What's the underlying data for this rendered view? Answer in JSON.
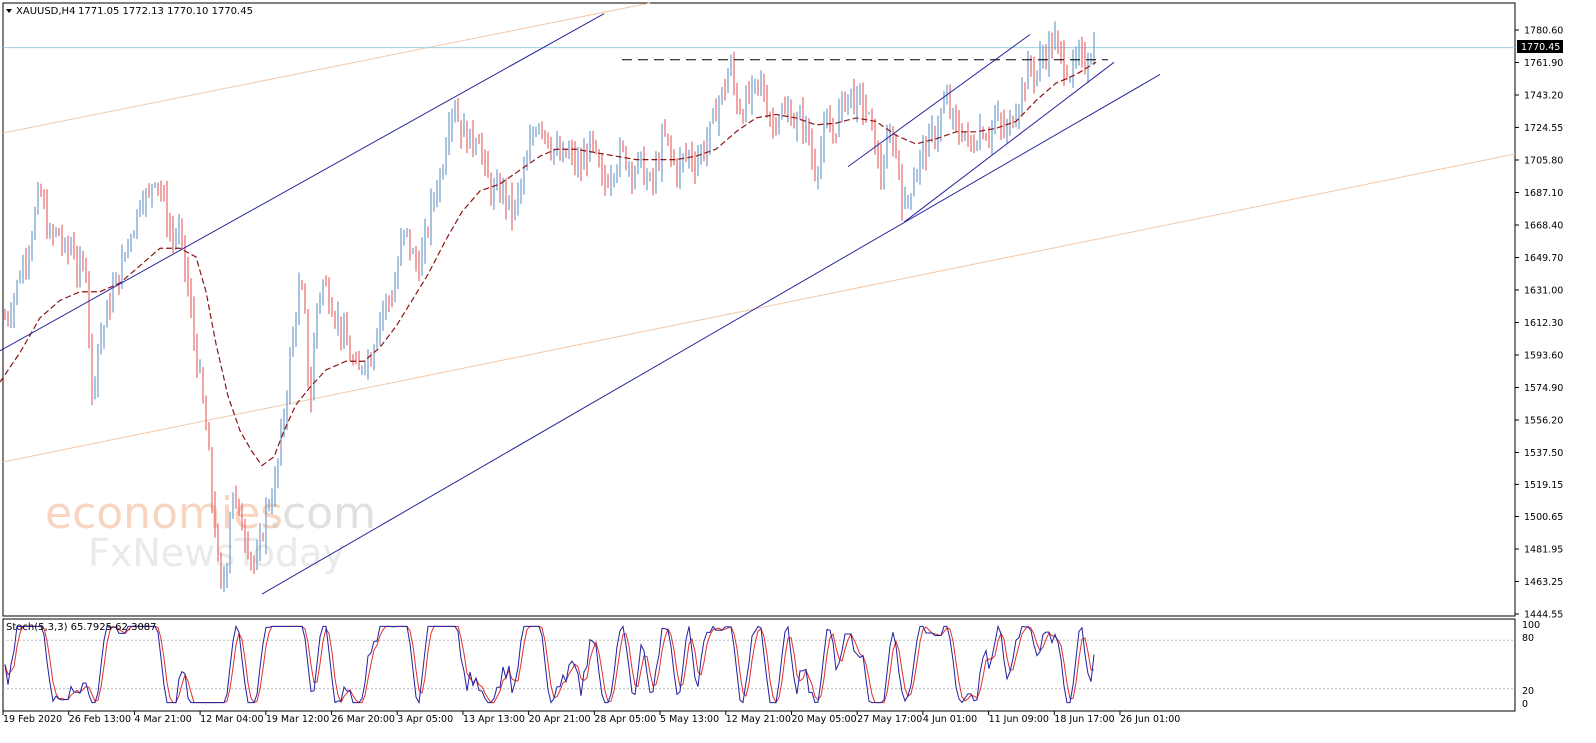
{
  "header": {
    "symbol": "XAUUSD,H4",
    "ohlc": "1771.05 1772.13 1770.10 1770.45"
  },
  "watermark": {
    "line1": "economies",
    "line1b": ".com",
    "line2": "FxNewsToday"
  },
  "price_label": "1770.45",
  "stoch": {
    "label": "Stoch(5,3,3) 65.7925 62.3087",
    "levels": [
      "100",
      "80",
      "20",
      "0"
    ]
  },
  "colors": {
    "bull": "#6f9ccc",
    "bear": "#e66b6b",
    "trendline": "#28289c",
    "ma": "#8c1616",
    "channel": "#f4c9a8",
    "stoch_main": "#2020a0",
    "stoch_signal": "#e03030",
    "current_price": "#9ecfe0"
  },
  "chart_data": {
    "type": "candlestick",
    "symbol": "XAUUSD",
    "timeframe": "H4",
    "ylim": [
      1444.55,
      1790
    ],
    "y_ticks": [
      "1780.60",
      "1761.90",
      "1743.20",
      "1724.55",
      "1705.80",
      "1687.10",
      "1668.40",
      "1649.70",
      "1631.00",
      "1612.30",
      "1593.60",
      "1574.90",
      "1556.20",
      "1537.50",
      "1519.15",
      "1500.65",
      "1481.95",
      "1463.25",
      "1444.55"
    ],
    "x_ticks": [
      "19 Feb 2020",
      "26 Feb 13:00",
      "4 Mar 21:00",
      "12 Mar 04:00",
      "19 Mar 12:00",
      "26 Mar 20:00",
      "3 Apr 05:00",
      "13 Apr 13:00",
      "20 Apr 21:00",
      "28 Apr 05:00",
      "5 May 13:00",
      "12 May 21:00",
      "20 May 05:00",
      "27 May 17:00",
      "4 Jun 01:00",
      "11 Jun 09:00",
      "18 Jun 17:00",
      "26 Jun 01:00"
    ],
    "price_path": [
      [
        0,
        1610
      ],
      [
        10,
        1620
      ],
      [
        20,
        1640
      ],
      [
        30,
        1660
      ],
      [
        40,
        1688
      ],
      [
        50,
        1660
      ],
      [
        58,
        1665
      ],
      [
        66,
        1650
      ],
      [
        72,
        1660
      ],
      [
        78,
        1640
      ],
      [
        86,
        1645
      ],
      [
        92,
        1570
      ],
      [
        98,
        1600
      ],
      [
        104,
        1610
      ],
      [
        112,
        1630
      ],
      [
        120,
        1640
      ],
      [
        128,
        1660
      ],
      [
        136,
        1672
      ],
      [
        142,
        1690
      ],
      [
        148,
        1680
      ],
      [
        154,
        1700
      ],
      [
        160,
        1690
      ],
      [
        166,
        1675
      ],
      [
        172,
        1660
      ],
      [
        178,
        1665
      ],
      [
        184,
        1650
      ],
      [
        190,
        1620
      ],
      [
        196,
        1595
      ],
      [
        202,
        1570
      ],
      [
        208,
        1540
      ],
      [
        212,
        1510
      ],
      [
        216,
        1490
      ],
      [
        220,
        1455
      ],
      [
        226,
        1470
      ],
      [
        232,
        1520
      ],
      [
        238,
        1500
      ],
      [
        244,
        1495
      ],
      [
        250,
        1480
      ],
      [
        256,
        1470
      ],
      [
        262,
        1490
      ],
      [
        268,
        1510
      ],
      [
        274,
        1515
      ],
      [
        280,
        1540
      ],
      [
        286,
        1570
      ],
      [
        292,
        1600
      ],
      [
        298,
        1630
      ],
      [
        304,
        1625
      ],
      [
        310,
        1560
      ],
      [
        316,
        1620
      ],
      [
        322,
        1635
      ],
      [
        328,
        1630
      ],
      [
        334,
        1620
      ],
      [
        340,
        1610
      ],
      [
        346,
        1600
      ],
      [
        352,
        1590
      ],
      [
        358,
        1580
      ],
      [
        364,
        1595
      ],
      [
        370,
        1590
      ],
      [
        376,
        1610
      ],
      [
        382,
        1620
      ],
      [
        388,
        1625
      ],
      [
        394,
        1630
      ],
      [
        400,
        1655
      ],
      [
        406,
        1665
      ],
      [
        412,
        1650
      ],
      [
        418,
        1645
      ],
      [
        424,
        1655
      ],
      [
        430,
        1675
      ],
      [
        436,
        1690
      ],
      [
        442,
        1700
      ],
      [
        448,
        1730
      ],
      [
        454,
        1740
      ],
      [
        460,
        1725
      ],
      [
        466,
        1720
      ],
      [
        472,
        1715
      ],
      [
        478,
        1725
      ],
      [
        484,
        1700
      ],
      [
        490,
        1690
      ],
      [
        496,
        1685
      ],
      [
        502,
        1690
      ],
      [
        508,
        1680
      ],
      [
        514,
        1675
      ],
      [
        520,
        1690
      ],
      [
        526,
        1700
      ],
      [
        532,
        1720
      ],
      [
        538,
        1730
      ],
      [
        544,
        1725
      ],
      [
        550,
        1715
      ],
      [
        556,
        1710
      ],
      [
        562,
        1705
      ],
      [
        568,
        1710
      ],
      [
        574,
        1705
      ],
      [
        580,
        1700
      ],
      [
        586,
        1710
      ],
      [
        592,
        1715
      ],
      [
        598,
        1700
      ],
      [
        604,
        1690
      ],
      [
        610,
        1700
      ],
      [
        616,
        1705
      ],
      [
        622,
        1710
      ],
      [
        628,
        1705
      ],
      [
        634,
        1700
      ],
      [
        640,
        1705
      ],
      [
        646,
        1695
      ],
      [
        652,
        1690
      ],
      [
        658,
        1705
      ],
      [
        664,
        1720
      ],
      [
        670,
        1710
      ],
      [
        676,
        1700
      ],
      [
        682,
        1705
      ],
      [
        688,
        1710
      ],
      [
        694,
        1705
      ],
      [
        700,
        1710
      ],
      [
        706,
        1715
      ],
      [
        712,
        1725
      ],
      [
        718,
        1740
      ],
      [
        724,
        1745
      ],
      [
        730,
        1762
      ],
      [
        736,
        1740
      ],
      [
        742,
        1735
      ],
      [
        748,
        1740
      ],
      [
        754,
        1745
      ],
      [
        760,
        1750
      ],
      [
        766,
        1740
      ],
      [
        772,
        1725
      ],
      [
        778,
        1735
      ],
      [
        784,
        1730
      ],
      [
        790,
        1735
      ],
      [
        796,
        1725
      ],
      [
        802,
        1730
      ],
      [
        808,
        1720
      ],
      [
        814,
        1700
      ],
      [
        820,
        1710
      ],
      [
        826,
        1725
      ],
      [
        832,
        1720
      ],
      [
        838,
        1730
      ],
      [
        844,
        1740
      ],
      [
        850,
        1745
      ],
      [
        856,
        1738
      ],
      [
        862,
        1740
      ],
      [
        868,
        1730
      ],
      [
        874,
        1720
      ],
      [
        880,
        1695
      ],
      [
        886,
        1710
      ],
      [
        892,
        1720
      ],
      [
        898,
        1705
      ],
      [
        904,
        1675
      ],
      [
        910,
        1690
      ],
      [
        916,
        1700
      ],
      [
        922,
        1710
      ],
      [
        928,
        1715
      ],
      [
        934,
        1720
      ],
      [
        940,
        1730
      ],
      [
        946,
        1740
      ],
      [
        952,
        1730
      ],
      [
        958,
        1720
      ],
      [
        964,
        1725
      ],
      [
        970,
        1710
      ],
      [
        976,
        1720
      ],
      [
        982,
        1725
      ],
      [
        988,
        1720
      ],
      [
        994,
        1730
      ],
      [
        1000,
        1725
      ],
      [
        1006,
        1720
      ],
      [
        1012,
        1730
      ],
      [
        1018,
        1740
      ],
      [
        1024,
        1750
      ],
      [
        1030,
        1760
      ],
      [
        1036,
        1755
      ],
      [
        1042,
        1765
      ],
      [
        1048,
        1770
      ],
      [
        1054,
        1775
      ],
      [
        1060,
        1765
      ],
      [
        1066,
        1760
      ],
      [
        1072,
        1755
      ],
      [
        1078,
        1765
      ],
      [
        1084,
        1760
      ],
      [
        1090,
        1770
      ],
      [
        1096,
        1770
      ]
    ],
    "moving_average": [
      [
        0,
        1578
      ],
      [
        20,
        1595
      ],
      [
        40,
        1615
      ],
      [
        60,
        1625
      ],
      [
        80,
        1630
      ],
      [
        100,
        1630
      ],
      [
        120,
        1635
      ],
      [
        140,
        1645
      ],
      [
        160,
        1655
      ],
      [
        180,
        1655
      ],
      [
        196,
        1650
      ],
      [
        206,
        1630
      ],
      [
        216,
        1600
      ],
      [
        228,
        1570
      ],
      [
        240,
        1550
      ],
      [
        252,
        1538
      ],
      [
        262,
        1530
      ],
      [
        274,
        1535
      ],
      [
        284,
        1550
      ],
      [
        296,
        1565
      ],
      [
        310,
        1575
      ],
      [
        326,
        1585
      ],
      [
        346,
        1590
      ],
      [
        364,
        1590
      ],
      [
        380,
        1598
      ],
      [
        396,
        1610
      ],
      [
        412,
        1625
      ],
      [
        428,
        1640
      ],
      [
        446,
        1660
      ],
      [
        462,
        1676
      ],
      [
        480,
        1688
      ],
      [
        500,
        1692
      ],
      [
        520,
        1700
      ],
      [
        540,
        1708
      ],
      [
        556,
        1712
      ],
      [
        576,
        1712
      ],
      [
        596,
        1710
      ],
      [
        616,
        1708
      ],
      [
        636,
        1706
      ],
      [
        656,
        1706
      ],
      [
        676,
        1706
      ],
      [
        696,
        1708
      ],
      [
        716,
        1712
      ],
      [
        736,
        1722
      ],
      [
        756,
        1730
      ],
      [
        776,
        1732
      ],
      [
        796,
        1730
      ],
      [
        816,
        1726
      ],
      [
        836,
        1727
      ],
      [
        856,
        1730
      ],
      [
        876,
        1728
      ],
      [
        896,
        1720
      ],
      [
        916,
        1715
      ],
      [
        936,
        1718
      ],
      [
        956,
        1722
      ],
      [
        976,
        1722
      ],
      [
        996,
        1724
      ],
      [
        1016,
        1728
      ],
      [
        1036,
        1740
      ],
      [
        1056,
        1750
      ],
      [
        1076,
        1755
      ],
      [
        1096,
        1762
      ]
    ],
    "trendlines": [
      {
        "name": "upper-channel-line",
        "from": [
          0,
          1596
        ],
        "to": [
          604,
          1790
        ]
      },
      {
        "name": "lower-support-line",
        "from": [
          262,
          1456
        ],
        "to": [
          1160,
          1755
        ]
      },
      {
        "name": "rising-wedge-top",
        "from": [
          848,
          1702
        ],
        "to": [
          1030,
          1778
        ]
      },
      {
        "name": "rising-wedge-bottom",
        "from": [
          904,
          1670
        ],
        "to": [
          1114,
          1762
        ]
      }
    ],
    "resistance": {
      "value": 1763.5,
      "from_x": 622,
      "to_x": 1108
    },
    "current_price": 1770.45,
    "stochastic": {
      "k": 65.7925,
      "d": 62.3087,
      "levels": [
        80,
        20
      ]
    }
  }
}
